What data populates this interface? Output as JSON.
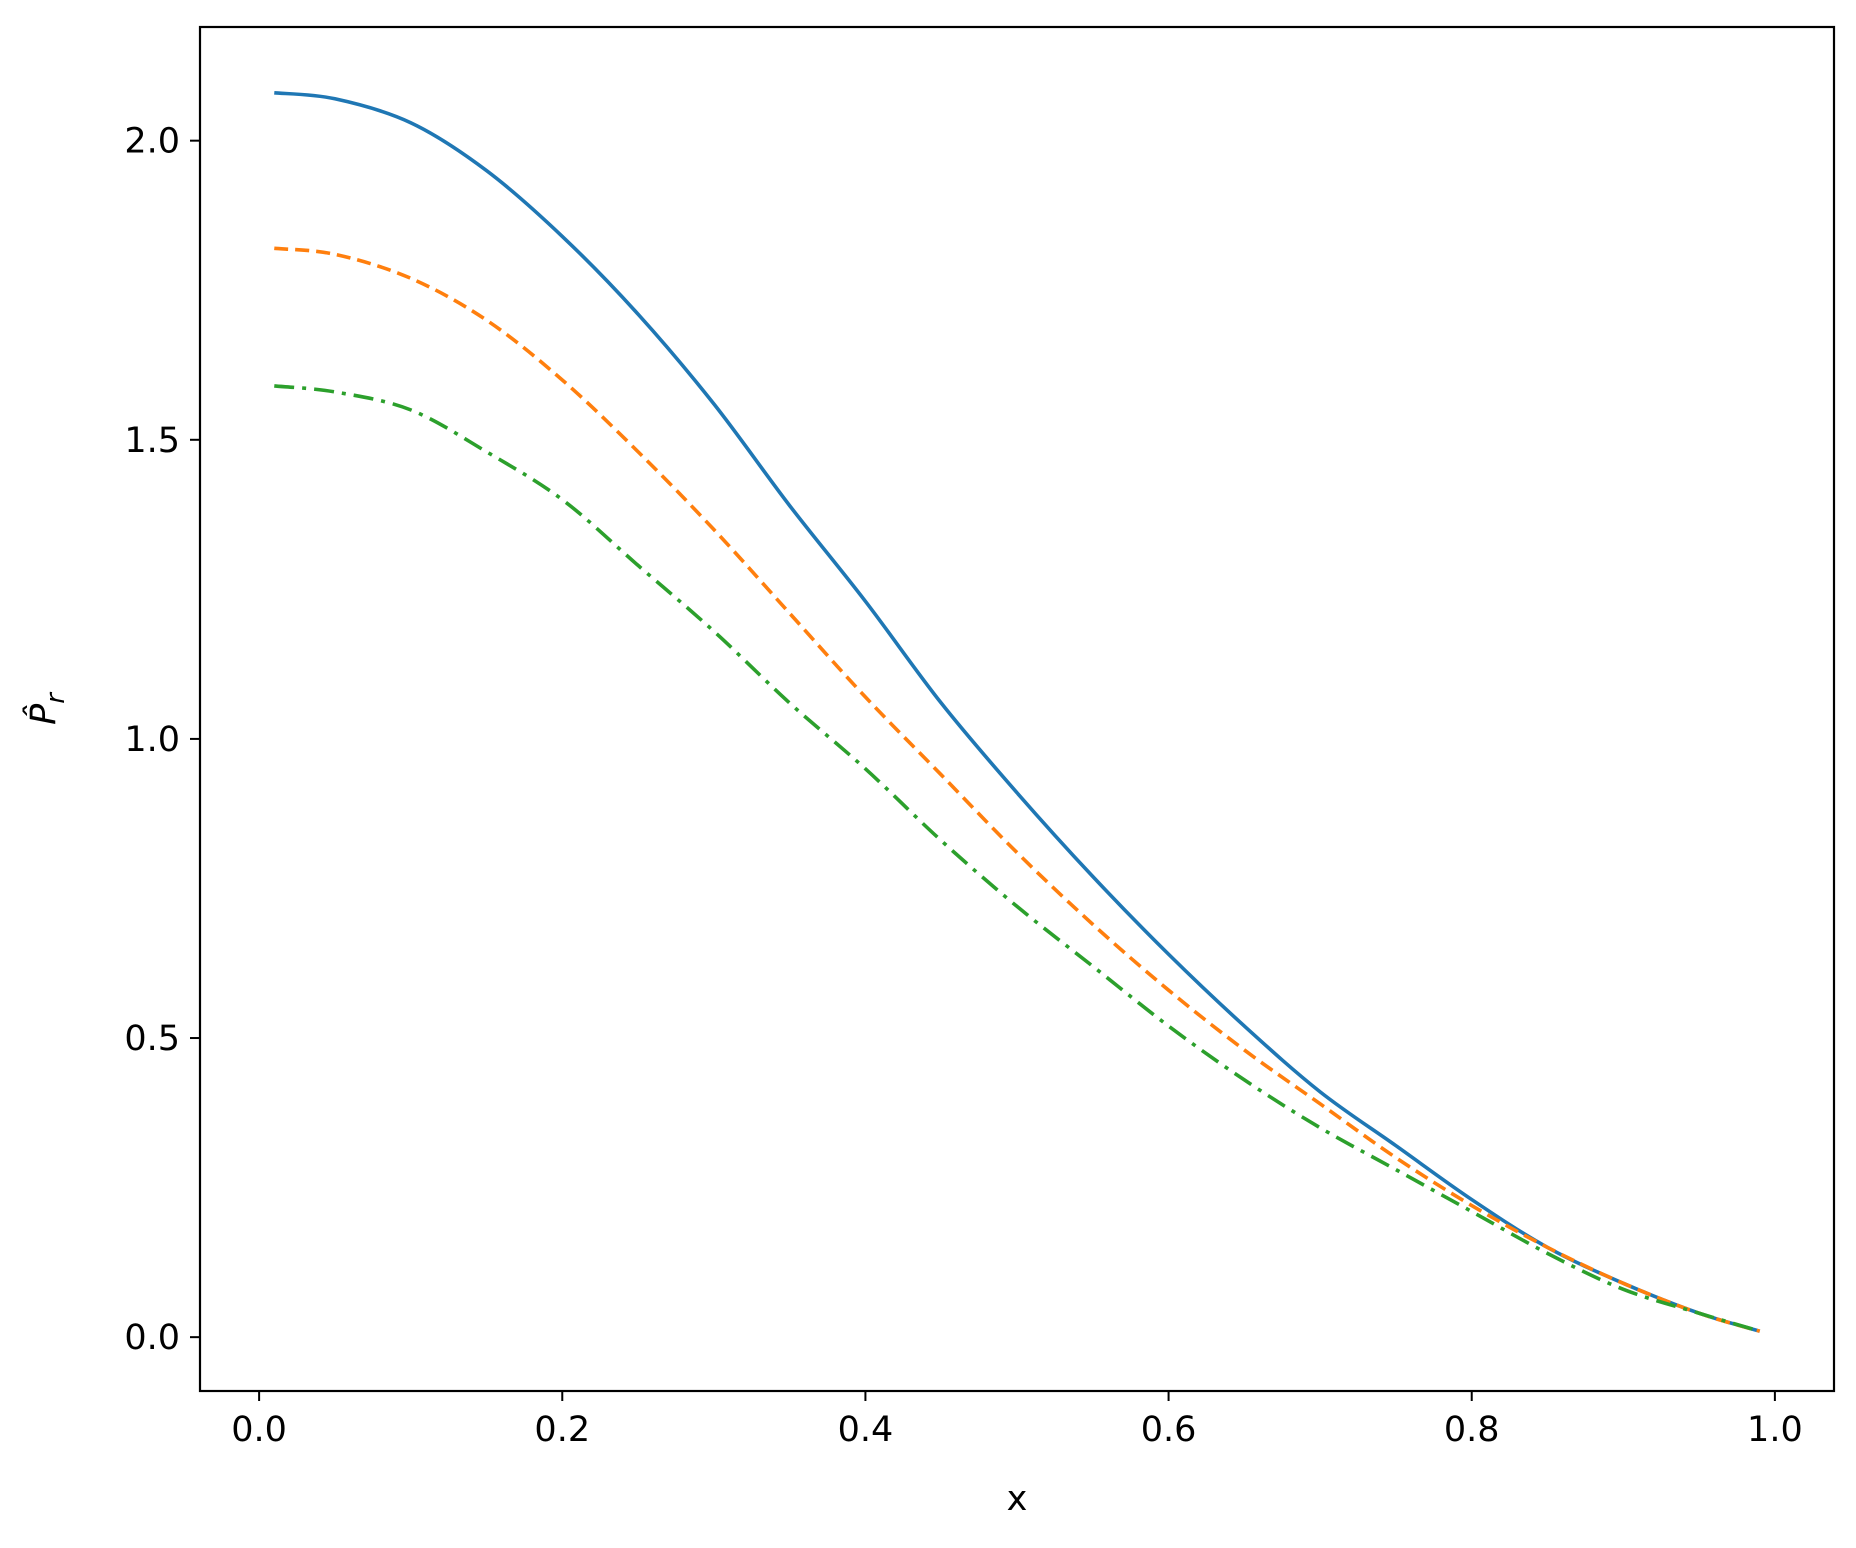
{
  "chart_data": {
    "type": "line",
    "xlabel": "x",
    "ylabel": "P̂",
    "ylabel_subscript": "r",
    "xlim": [
      -0.039,
      1.039
    ],
    "ylim": [
      -0.09,
      2.19
    ],
    "xticks": [
      {
        "value": 0.0,
        "label": "0.0"
      },
      {
        "value": 0.2,
        "label": "0.2"
      },
      {
        "value": 0.4,
        "label": "0.4"
      },
      {
        "value": 0.6,
        "label": "0.6"
      },
      {
        "value": 0.8,
        "label": "0.8"
      },
      {
        "value": 1.0,
        "label": "1.0"
      }
    ],
    "yticks": [
      {
        "value": 0.0,
        "label": "0.0"
      },
      {
        "value": 0.5,
        "label": "0.5"
      },
      {
        "value": 1.0,
        "label": "1.0"
      },
      {
        "value": 1.5,
        "label": "1.5"
      },
      {
        "value": 2.0,
        "label": "2.0"
      }
    ],
    "grid": false,
    "series": [
      {
        "color": "#1f77b4",
        "style": "solid",
        "points": [
          [
            0.01,
            2.08
          ],
          [
            0.05,
            2.07
          ],
          [
            0.1,
            2.03
          ],
          [
            0.15,
            1.95
          ],
          [
            0.2,
            1.84
          ],
          [
            0.25,
            1.71
          ],
          [
            0.3,
            1.56
          ],
          [
            0.35,
            1.39
          ],
          [
            0.4,
            1.23
          ],
          [
            0.45,
            1.06
          ],
          [
            0.5,
            0.91
          ],
          [
            0.55,
            0.77
          ],
          [
            0.6,
            0.64
          ],
          [
            0.65,
            0.52
          ],
          [
            0.7,
            0.41
          ],
          [
            0.75,
            0.32
          ],
          [
            0.8,
            0.23
          ],
          [
            0.85,
            0.15
          ],
          [
            0.9,
            0.09
          ],
          [
            0.95,
            0.04
          ],
          [
            0.99,
            0.01
          ]
        ]
      },
      {
        "color": "#ff7f0e",
        "style": "dashed",
        "points": [
          [
            0.01,
            1.82
          ],
          [
            0.05,
            1.81
          ],
          [
            0.1,
            1.77
          ],
          [
            0.15,
            1.7
          ],
          [
            0.2,
            1.6
          ],
          [
            0.25,
            1.48
          ],
          [
            0.3,
            1.35
          ],
          [
            0.35,
            1.21
          ],
          [
            0.4,
            1.07
          ],
          [
            0.45,
            0.94
          ],
          [
            0.5,
            0.81
          ],
          [
            0.55,
            0.69
          ],
          [
            0.6,
            0.58
          ],
          [
            0.65,
            0.48
          ],
          [
            0.7,
            0.39
          ],
          [
            0.75,
            0.3
          ],
          [
            0.8,
            0.22
          ],
          [
            0.85,
            0.15
          ],
          [
            0.9,
            0.09
          ],
          [
            0.95,
            0.04
          ],
          [
            0.99,
            0.01
          ]
        ]
      },
      {
        "color": "#2ca02c",
        "style": "dashdot",
        "points": [
          [
            0.01,
            1.59
          ],
          [
            0.05,
            1.58
          ],
          [
            0.1,
            1.55
          ],
          [
            0.15,
            1.48
          ],
          [
            0.2,
            1.4
          ],
          [
            0.25,
            1.29
          ],
          [
            0.3,
            1.18
          ],
          [
            0.35,
            1.06
          ],
          [
            0.4,
            0.95
          ],
          [
            0.45,
            0.83
          ],
          [
            0.5,
            0.72
          ],
          [
            0.55,
            0.62
          ],
          [
            0.6,
            0.52
          ],
          [
            0.65,
            0.43
          ],
          [
            0.7,
            0.35
          ],
          [
            0.75,
            0.28
          ],
          [
            0.8,
            0.21
          ],
          [
            0.85,
            0.14
          ],
          [
            0.9,
            0.08
          ],
          [
            0.95,
            0.04
          ],
          [
            0.99,
            0.01
          ]
        ]
      }
    ]
  }
}
